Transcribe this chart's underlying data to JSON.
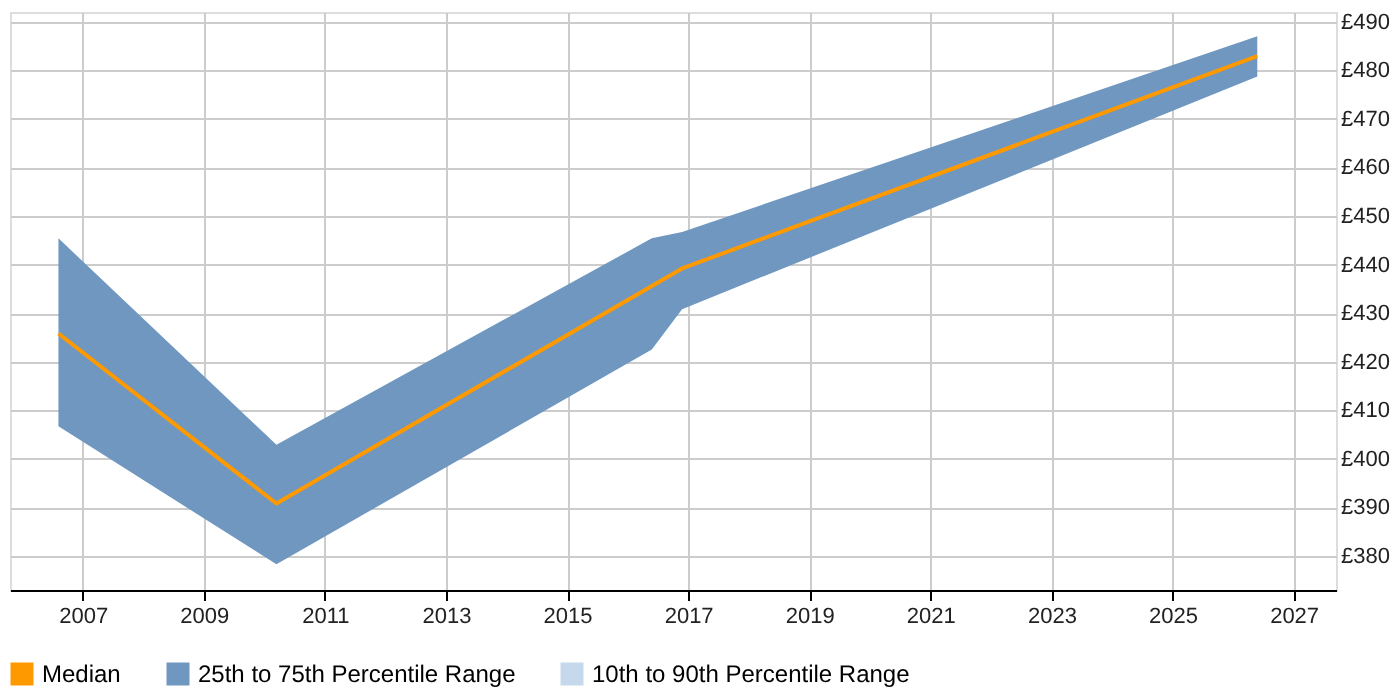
{
  "chart_data": {
    "type": "line",
    "series": [
      {
        "name": "Median",
        "color": "#ff9900",
        "x": [
          2006.6,
          2010.2,
          2016.9,
          2026.4
        ],
        "values": [
          425.8,
          390.8,
          439.2,
          482.9
        ]
      },
      {
        "name": "25th to 75th Percentile Range",
        "type": "area",
        "color": "#6f97c0",
        "x": [
          2006.6,
          2010.2,
          2016.4,
          2016.9,
          2026.4
        ],
        "values": [
          null,
          null,
          null,
          null,
          null
        ],
        "lower": [
          406.7,
          378.3,
          422.5,
          430.8,
          478.7
        ],
        "upper": [
          445.4,
          402.9,
          445.4,
          446.7,
          487.0
        ]
      },
      {
        "name": "10th to 90th Percentile Range",
        "type": "area",
        "color": "#c6d9ec"
      }
    ],
    "xlim": [
      2005.8,
      2027.7
    ],
    "xticks": [
      2007,
      2009,
      2011,
      2013,
      2015,
      2017,
      2019,
      2021,
      2023,
      2025,
      2027
    ],
    "ylim": [
      373,
      492
    ],
    "yticks": [
      {
        "value": 380,
        "label": "£380"
      },
      {
        "value": 390,
        "label": "£390"
      },
      {
        "value": 400,
        "label": "£400"
      },
      {
        "value": 410,
        "label": "£410"
      },
      {
        "value": 420,
        "label": "£420"
      },
      {
        "value": 430,
        "label": "£430"
      },
      {
        "value": 440,
        "label": "£440"
      },
      {
        "value": 450,
        "label": "£450"
      },
      {
        "value": 460,
        "label": "£460"
      },
      {
        "value": 470,
        "label": "£470"
      },
      {
        "value": 480,
        "label": "£480"
      },
      {
        "value": 490,
        "label": "£490"
      }
    ],
    "grid": true,
    "legend": "bottom"
  }
}
